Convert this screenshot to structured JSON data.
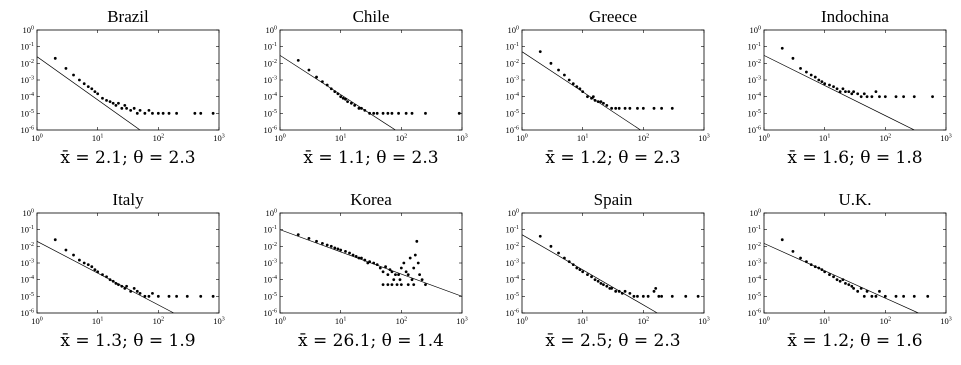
{
  "figure": {
    "x_tick_labels": [
      "10^0",
      "10^1",
      "10^2",
      "10^3"
    ],
    "y_tick_labels": [
      "10^0",
      "10^-1",
      "10^-2",
      "10^-3",
      "10^-4",
      "10^-5",
      "10^-6"
    ],
    "marker_color": "#000000",
    "fit_line_color": "#000000"
  },
  "chart_data": [
    {
      "type": "scatter",
      "title": "Brazil",
      "caption": "x̄ = 2.1; θ = 2.3",
      "xscale": "log",
      "yscale": "log",
      "xlim": [
        1,
        1000
      ],
      "ylim": [
        1e-06,
        1
      ],
      "fit_line": [
        [
          1,
          0.025
        ],
        [
          50,
          1e-06
        ]
      ],
      "points": [
        [
          2,
          0.02
        ],
        [
          3,
          0.005
        ],
        [
          4,
          0.002
        ],
        [
          5,
          0.001
        ],
        [
          6,
          0.0006
        ],
        [
          7,
          0.0004
        ],
        [
          8,
          0.0003
        ],
        [
          9,
          0.0002
        ],
        [
          10,
          0.00015
        ],
        [
          12,
          8e-05
        ],
        [
          14,
          6e-05
        ],
        [
          16,
          5e-05
        ],
        [
          18,
          4e-05
        ],
        [
          20,
          3e-05
        ],
        [
          22,
          4e-05
        ],
        [
          25,
          2e-05
        ],
        [
          28,
          3e-05
        ],
        [
          30,
          2e-05
        ],
        [
          35,
          1.5e-05
        ],
        [
          40,
          2e-05
        ],
        [
          45,
          1e-05
        ],
        [
          50,
          1.5e-05
        ],
        [
          60,
          1e-05
        ],
        [
          70,
          1.5e-05
        ],
        [
          80,
          1e-05
        ],
        [
          100,
          1e-05
        ],
        [
          120,
          1e-05
        ],
        [
          150,
          1e-05
        ],
        [
          200,
          1e-05
        ],
        [
          400,
          1e-05
        ],
        [
          500,
          1e-05
        ],
        [
          800,
          1e-05
        ]
      ]
    },
    {
      "type": "scatter",
      "title": "Chile",
      "caption": "x̄ = 1.1; θ = 2.3",
      "xscale": "log",
      "yscale": "log",
      "xlim": [
        1,
        1000
      ],
      "ylim": [
        1e-06,
        1
      ],
      "fit_line": [
        [
          1,
          0.03
        ],
        [
          80,
          1e-06
        ]
      ],
      "points": [
        [
          2,
          0.015
        ],
        [
          3,
          0.004
        ],
        [
          4,
          0.0015
        ],
        [
          5,
          0.0008
        ],
        [
          6,
          0.0005
        ],
        [
          7,
          0.0003
        ],
        [
          8,
          0.0002
        ],
        [
          9,
          0.00015
        ],
        [
          10,
          0.0001
        ],
        [
          11,
          8e-05
        ],
        [
          12,
          7e-05
        ],
        [
          13,
          5e-05
        ],
        [
          15,
          4e-05
        ],
        [
          17,
          3e-05
        ],
        [
          20,
          2e-05
        ],
        [
          22,
          2e-05
        ],
        [
          25,
          1.5e-05
        ],
        [
          30,
          1e-05
        ],
        [
          35,
          1e-05
        ],
        [
          40,
          1e-05
        ],
        [
          50,
          1e-05
        ],
        [
          60,
          1e-05
        ],
        [
          70,
          1e-05
        ],
        [
          90,
          1e-05
        ],
        [
          120,
          1e-05
        ],
        [
          150,
          1e-05
        ],
        [
          250,
          1e-05
        ],
        [
          900,
          1e-05
        ]
      ]
    },
    {
      "type": "scatter",
      "title": "Greece",
      "caption": "x̄ = 1.2; θ = 2.3",
      "xscale": "log",
      "yscale": "log",
      "xlim": [
        1,
        1000
      ],
      "ylim": [
        1e-06,
        1
      ],
      "fit_line": [
        [
          1,
          0.05
        ],
        [
          90,
          1e-06
        ]
      ],
      "points": [
        [
          2,
          0.05
        ],
        [
          3,
          0.01
        ],
        [
          4,
          0.004
        ],
        [
          5,
          0.002
        ],
        [
          6,
          0.001
        ],
        [
          7,
          0.0006
        ],
        [
          8,
          0.0004
        ],
        [
          9,
          0.0003
        ],
        [
          10,
          0.0002
        ],
        [
          12,
          0.0001
        ],
        [
          14,
          8e-05
        ],
        [
          15,
          0.0001
        ],
        [
          16,
          6e-05
        ],
        [
          18,
          5e-05
        ],
        [
          20,
          5e-05
        ],
        [
          22,
          4e-05
        ],
        [
          25,
          3e-05
        ],
        [
          30,
          2e-05
        ],
        [
          35,
          2e-05
        ],
        [
          40,
          2e-05
        ],
        [
          50,
          2e-05
        ],
        [
          60,
          2e-05
        ],
        [
          80,
          2e-05
        ],
        [
          100,
          2e-05
        ],
        [
          150,
          2e-05
        ],
        [
          200,
          2e-05
        ],
        [
          300,
          2e-05
        ]
      ]
    },
    {
      "type": "scatter",
      "title": "Indochina",
      "caption": "x̄ = 1.6; θ = 1.8",
      "xscale": "log",
      "yscale": "log",
      "xlim": [
        1,
        1000
      ],
      "ylim": [
        1e-06,
        1
      ],
      "fit_line": [
        [
          1,
          0.03
        ],
        [
          300,
          1e-06
        ]
      ],
      "points": [
        [
          2,
          0.08
        ],
        [
          3,
          0.02
        ],
        [
          4,
          0.005
        ],
        [
          5,
          0.003
        ],
        [
          6,
          0.002
        ],
        [
          7,
          0.0015
        ],
        [
          8,
          0.001
        ],
        [
          9,
          0.0008
        ],
        [
          10,
          0.0006
        ],
        [
          12,
          0.0005
        ],
        [
          14,
          0.0004
        ],
        [
          16,
          0.0003
        ],
        [
          18,
          0.0002
        ],
        [
          20,
          0.0003
        ],
        [
          22,
          0.0002
        ],
        [
          25,
          0.0002
        ],
        [
          28,
          0.00015
        ],
        [
          30,
          0.0002
        ],
        [
          35,
          0.00015
        ],
        [
          40,
          0.0001
        ],
        [
          45,
          0.00015
        ],
        [
          50,
          0.0001
        ],
        [
          60,
          0.0001
        ],
        [
          70,
          0.0002
        ],
        [
          80,
          0.0001
        ],
        [
          100,
          0.0001
        ],
        [
          150,
          0.0001
        ],
        [
          200,
          0.0001
        ],
        [
          300,
          0.0001
        ],
        [
          600,
          0.0001
        ]
      ]
    },
    {
      "type": "scatter",
      "title": "Italy",
      "caption": "x̄ = 1.3; θ = 1.9",
      "xscale": "log",
      "yscale": "log",
      "xlim": [
        1,
        1000
      ],
      "ylim": [
        1e-06,
        1
      ],
      "fit_line": [
        [
          1,
          0.02
        ],
        [
          180,
          1e-06
        ]
      ],
      "points": [
        [
          2,
          0.025
        ],
        [
          3,
          0.006
        ],
        [
          4,
          0.003
        ],
        [
          5,
          0.0015
        ],
        [
          6,
          0.001
        ],
        [
          7,
          0.0008
        ],
        [
          8,
          0.0006
        ],
        [
          9,
          0.0004
        ],
        [
          10,
          0.0003
        ],
        [
          12,
          0.0002
        ],
        [
          14,
          0.00015
        ],
        [
          16,
          0.0001
        ],
        [
          18,
          8e-05
        ],
        [
          20,
          6e-05
        ],
        [
          22,
          5e-05
        ],
        [
          25,
          4e-05
        ],
        [
          28,
          3e-05
        ],
        [
          30,
          4e-05
        ],
        [
          35,
          2e-05
        ],
        [
          40,
          3e-05
        ],
        [
          45,
          2e-05
        ],
        [
          50,
          1.5e-05
        ],
        [
          60,
          1e-05
        ],
        [
          70,
          1e-05
        ],
        [
          80,
          1.5e-05
        ],
        [
          100,
          1e-05
        ],
        [
          150,
          1e-05
        ],
        [
          200,
          1e-05
        ],
        [
          300,
          1e-05
        ],
        [
          500,
          1e-05
        ],
        [
          800,
          1e-05
        ]
      ]
    },
    {
      "type": "scatter",
      "title": "Korea",
      "caption": "x̄ = 26.1; θ = 1.4",
      "xscale": "log",
      "yscale": "log",
      "xlim": [
        1,
        1000
      ],
      "ylim": [
        1e-06,
        1
      ],
      "fit_line": [
        [
          1,
          0.1
        ],
        [
          1000,
          1e-05
        ]
      ],
      "points": [
        [
          2,
          0.05
        ],
        [
          3,
          0.03
        ],
        [
          4,
          0.02
        ],
        [
          5,
          0.015
        ],
        [
          6,
          0.012
        ],
        [
          7,
          0.01
        ],
        [
          8,
          0.008
        ],
        [
          9,
          0.007
        ],
        [
          10,
          0.006
        ],
        [
          12,
          0.005
        ],
        [
          14,
          0.004
        ],
        [
          16,
          0.003
        ],
        [
          18,
          0.0025
        ],
        [
          20,
          0.002
        ],
        [
          22,
          0.002
        ],
        [
          25,
          0.0015
        ],
        [
          28,
          0.001
        ],
        [
          30,
          0.0012
        ],
        [
          35,
          0.001
        ],
        [
          40,
          0.0008
        ],
        [
          45,
          0.0005
        ],
        [
          50,
          0.0003
        ],
        [
          55,
          0.0006
        ],
        [
          60,
          0.0002
        ],
        [
          65,
          0.0004
        ],
        [
          70,
          0.0003
        ],
        [
          75,
          0.0001
        ],
        [
          80,
          0.0002
        ],
        [
          85,
          5e-05
        ],
        [
          90,
          0.0002
        ],
        [
          95,
          0.0001
        ],
        [
          100,
          0.0005
        ],
        [
          110,
          0.001
        ],
        [
          120,
          0.0003
        ],
        [
          130,
          0.0002
        ],
        [
          140,
          0.002
        ],
        [
          150,
          0.0001
        ],
        [
          160,
          0.0005
        ],
        [
          170,
          0.003
        ],
        [
          180,
          0.02
        ],
        [
          190,
          0.001
        ],
        [
          200,
          0.0002
        ],
        [
          220,
          0.0001
        ],
        [
          250,
          5e-05
        ],
        [
          50,
          5e-05
        ],
        [
          60,
          5e-05
        ],
        [
          70,
          5e-05
        ],
        [
          100,
          5e-05
        ],
        [
          130,
          5e-05
        ],
        [
          160,
          5e-05
        ]
      ]
    },
    {
      "type": "scatter",
      "title": "Spain",
      "caption": "x̄ = 2.5; θ = 2.3",
      "xscale": "log",
      "yscale": "log",
      "xlim": [
        1,
        1000
      ],
      "ylim": [
        1e-06,
        1
      ],
      "fit_line": [
        [
          1,
          0.05
        ],
        [
          170,
          1e-06
        ]
      ],
      "points": [
        [
          2,
          0.04
        ],
        [
          3,
          0.01
        ],
        [
          4,
          0.004
        ],
        [
          5,
          0.002
        ],
        [
          6,
          0.0012
        ],
        [
          7,
          0.0008
        ],
        [
          8,
          0.0005
        ],
        [
          9,
          0.0004
        ],
        [
          10,
          0.0003
        ],
        [
          12,
          0.0002
        ],
        [
          14,
          0.00015
        ],
        [
          16,
          0.0001
        ],
        [
          18,
          8e-05
        ],
        [
          20,
          6e-05
        ],
        [
          22,
          5e-05
        ],
        [
          25,
          4e-05
        ],
        [
          28,
          3e-05
        ],
        [
          30,
          3e-05
        ],
        [
          35,
          2e-05
        ],
        [
          40,
          2e-05
        ],
        [
          45,
          1.5e-05
        ],
        [
          50,
          2e-05
        ],
        [
          60,
          1.5e-05
        ],
        [
          70,
          1e-05
        ],
        [
          80,
          1e-05
        ],
        [
          100,
          1e-05
        ],
        [
          120,
          1e-05
        ],
        [
          150,
          2e-05
        ],
        [
          160,
          3e-05
        ],
        [
          180,
          1e-05
        ],
        [
          200,
          1e-05
        ],
        [
          300,
          1e-05
        ],
        [
          500,
          1e-05
        ],
        [
          800,
          1e-05
        ]
      ]
    },
    {
      "type": "scatter",
      "title": "U.K.",
      "caption": "x̄ = 1.2; θ = 1.6",
      "xscale": "log",
      "yscale": "log",
      "xlim": [
        1,
        1000
      ],
      "ylim": [
        1e-06,
        1
      ],
      "fit_line": [
        [
          1,
          0.015
        ],
        [
          350,
          1e-06
        ]
      ],
      "points": [
        [
          2,
          0.025
        ],
        [
          3,
          0.005
        ],
        [
          4,
          0.002
        ],
        [
          5,
          0.0012
        ],
        [
          6,
          0.0008
        ],
        [
          7,
          0.0006
        ],
        [
          8,
          0.0005
        ],
        [
          9,
          0.0004
        ],
        [
          10,
          0.0003
        ],
        [
          12,
          0.0002
        ],
        [
          14,
          0.00015
        ],
        [
          16,
          0.0001
        ],
        [
          18,
          8e-05
        ],
        [
          20,
          0.0001
        ],
        [
          22,
          6e-05
        ],
        [
          25,
          5e-05
        ],
        [
          28,
          4e-05
        ],
        [
          30,
          3e-05
        ],
        [
          35,
          2e-05
        ],
        [
          40,
          3e-05
        ],
        [
          45,
          1e-05
        ],
        [
          50,
          2e-05
        ],
        [
          60,
          1e-05
        ],
        [
          70,
          1e-05
        ],
        [
          80,
          2e-05
        ],
        [
          100,
          1e-05
        ],
        [
          150,
          1e-05
        ],
        [
          200,
          1e-05
        ],
        [
          300,
          1e-05
        ],
        [
          500,
          1e-05
        ]
      ]
    }
  ]
}
